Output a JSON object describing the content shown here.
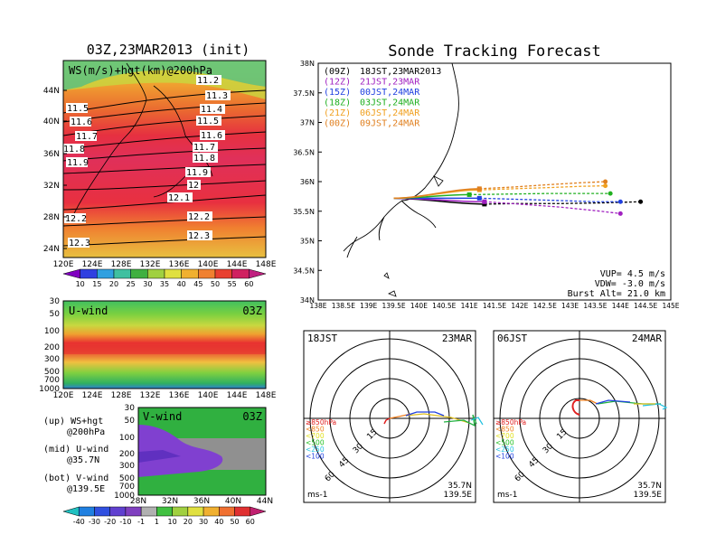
{
  "left_panel": {
    "title": "03Z,23MAR2013 (init)",
    "map_label": "WS(m/s)+hgt(km)@200hPa",
    "lat_ticks": [
      "44N",
      "40N",
      "36N",
      "32N",
      "28N",
      "24N"
    ],
    "lon_ticks": [
      "120E",
      "124E",
      "128E",
      "132E",
      "136E",
      "140E",
      "144E",
      "148E"
    ],
    "contour_labels_left": [
      "11.5",
      "11.6",
      "11.7",
      "11.8",
      "11.9",
      "12.2",
      "12.3"
    ],
    "contour_labels_right": [
      "11.2",
      "11.3",
      "11.4",
      "11.5",
      "11.6",
      "11.7",
      "11.8",
      "11.9",
      "12",
      "12.1",
      "12.2",
      "12.3"
    ],
    "ws_colorbar": [
      "10",
      "15",
      "20",
      "25",
      "30",
      "35",
      "40",
      "45",
      "50",
      "55",
      "60"
    ]
  },
  "uwind_panel": {
    "label": "U-wind",
    "time": "03Z",
    "pressure_ticks": [
      "30",
      "50",
      "100",
      "200",
      "300",
      "500",
      "700",
      "1000"
    ],
    "lon_ticks": [
      "120E",
      "124E",
      "128E",
      "132E",
      "136E",
      "140E",
      "144E",
      "148E"
    ]
  },
  "vwind_panel": {
    "label": "V-wind",
    "time": "03Z",
    "pressure_ticks": [
      "30",
      "50",
      "100",
      "200",
      "300",
      "500",
      "700",
      "1000"
    ],
    "lat_ticks": [
      "28N",
      "32N",
      "36N",
      "40N",
      "44N"
    ]
  },
  "legend_text": {
    "up": "(up) WS+hgt",
    "up2": "@200hPa",
    "mid": "(mid) U-wind",
    "mid2": "@35.7N",
    "bot": "(bot) V-wind",
    "bot2": "@139.5E"
  },
  "bottom_colorbar": [
    "-40",
    "-30",
    "-20",
    "-10",
    "-1",
    "1",
    "10",
    "20",
    "30",
    "40",
    "50",
    "60"
  ],
  "tracking": {
    "title": "Sonde Tracking Forecast",
    "lat_ticks": [
      "38N",
      "37.5N",
      "37N",
      "36.5N",
      "36N",
      "35.5N",
      "35N",
      "34.5N",
      "34N"
    ],
    "lon_ticks": [
      "138E",
      "138.5E",
      "139E",
      "139.5E",
      "140E",
      "140.5E",
      "141E",
      "141.5E",
      "142E",
      "142.5E",
      "143E",
      "143.5E",
      "144E",
      "144.5E",
      "145E"
    ],
    "launch_entries": [
      {
        "utc": "(09Z)",
        "jst": "18JST,23MAR2013",
        "color": "#000000"
      },
      {
        "utc": "(12Z)",
        "jst": "21JST,23MAR",
        "color": "#a020c0"
      },
      {
        "utc": "(15Z)",
        "jst": "00JST,24MAR",
        "color": "#2040e0"
      },
      {
        "utc": "(18Z)",
        "jst": "03JST,24MAR",
        "color": "#20b020"
      },
      {
        "utc": "(21Z)",
        "jst": "06JST,24MAR",
        "color": "#f0a020"
      },
      {
        "utc": "(00Z)",
        "jst": "09JST,24MAR",
        "color": "#e08020"
      }
    ],
    "params": {
      "vup": "VUP= 4.5 m/s",
      "vdw": "VDW= -3.0 m/s",
      "burst": "Burst Alt= 21.0 km"
    }
  },
  "hodo_left": {
    "time": "18JST",
    "date": "23MAR",
    "rings": [
      "15",
      "30",
      "45",
      "60"
    ],
    "levels": [
      "≥850hPa",
      "<850",
      "<700",
      "<500",
      "<250",
      "<100"
    ],
    "units": "ms-1",
    "lat": "35.7N",
    "lon": "139.5E"
  },
  "hodo_right": {
    "time": "06JST",
    "date": "24MAR",
    "rings": [
      "15",
      "30",
      "45",
      "60"
    ],
    "levels": [
      "≥850hPa",
      "<850",
      "<700",
      "<500",
      "<250",
      "<100"
    ],
    "units": "ms-1",
    "lat": "35.7N",
    "lon": "139.5E"
  },
  "colors": {
    "black": "#000000",
    "purple": "#a020c0",
    "blue": "#2040e0",
    "green": "#20b020",
    "yellow": "#f0a020",
    "orange": "#e08020"
  },
  "chart_data": {
    "type": "line",
    "title": "Sonde Tracking Forecast",
    "xlabel": "",
    "ylabel": "",
    "xlim": [
      138,
      145
    ],
    "ylim": [
      34,
      38
    ],
    "launch_point": {
      "lon": 139.5,
      "lat": 35.72
    },
    "series": [
      {
        "name": "(09Z) 18JST,23MAR2013",
        "color": "#000000",
        "ascent_end": {
          "lon": 141.3,
          "lat": 35.62
        },
        "x": [
          141.3,
          142.0,
          142.8,
          143.6,
          144.4
        ],
        "y": [
          35.62,
          35.63,
          35.63,
          35.64,
          35.66
        ]
      },
      {
        "name": "(12Z) 21JST,23MAR",
        "color": "#a020c0",
        "ascent_end": {
          "lon": 141.3,
          "lat": 35.66
        },
        "x": [
          141.3,
          142.0,
          142.8,
          143.5,
          144.0
        ],
        "y": [
          35.66,
          35.62,
          35.57,
          35.51,
          35.46
        ]
      },
      {
        "name": "(15Z) 00JST,24MAR",
        "color": "#2040e0",
        "ascent_end": {
          "lon": 141.2,
          "lat": 35.72
        },
        "x": [
          141.2,
          142.0,
          142.8,
          143.5,
          144.0
        ],
        "y": [
          35.72,
          35.7,
          35.68,
          35.66,
          35.66
        ]
      },
      {
        "name": "(18Z) 03JST,24MAR",
        "color": "#20b020",
        "ascent_end": {
          "lon": 141.0,
          "lat": 35.78
        },
        "x": [
          141.0,
          141.8,
          142.6,
          143.3,
          143.8
        ],
        "y": [
          35.78,
          35.79,
          35.8,
          35.8,
          35.8
        ]
      },
      {
        "name": "(21Z) 06JST,24MAR",
        "color": "#f0a020",
        "ascent_end": {
          "lon": 141.2,
          "lat": 35.86
        },
        "x": [
          141.2,
          141.9,
          142.6,
          143.2,
          143.7
        ],
        "y": [
          35.86,
          35.88,
          35.9,
          35.92,
          35.93
        ]
      },
      {
        "name": "(00Z) 09JST,24MAR",
        "color": "#e08020",
        "ascent_end": {
          "lon": 141.2,
          "lat": 35.88
        },
        "x": [
          141.2,
          141.9,
          142.6,
          143.2,
          143.7
        ],
        "y": [
          35.88,
          35.91,
          35.95,
          35.98,
          36.0
        ]
      }
    ]
  }
}
